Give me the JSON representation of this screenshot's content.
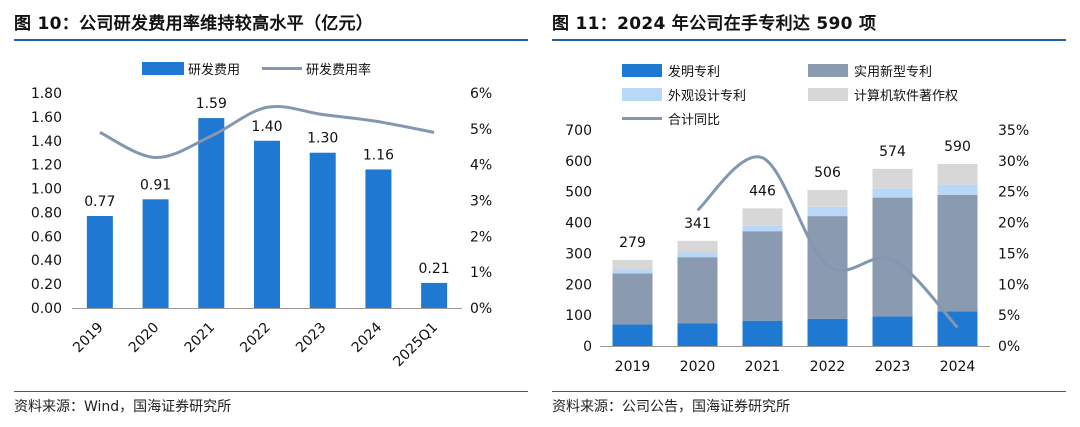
{
  "left": {
    "title": "图 10：公司研发费用率维持较高水平（亿元）",
    "source": "资料来源：Wind，国海证券研究所"
  },
  "right": {
    "title": "图 11：2024 年公司在手专利达 590 项",
    "source": "资料来源：公司公告，国海证券研究所"
  },
  "chart_data": [
    {
      "type": "bar",
      "title": "图 10：公司研发费用率维持较高水平（亿元）",
      "categories": [
        "2019",
        "2020",
        "2021",
        "2022",
        "2023",
        "2024",
        "2025Q1"
      ],
      "series": [
        {
          "name": "研发费用",
          "type": "bar",
          "axis": "left",
          "values": [
            0.77,
            0.91,
            1.59,
            1.4,
            1.3,
            1.16,
            0.21
          ]
        },
        {
          "name": "研发费用率",
          "type": "line",
          "axis": "right",
          "values": [
            4.9,
            4.2,
            4.8,
            5.6,
            5.4,
            5.2,
            4.9
          ]
        }
      ],
      "data_labels": [
        "0.77",
        "0.91",
        "1.59",
        "1.40",
        "1.30",
        "1.16",
        "0.21"
      ],
      "y_left": {
        "min": 0,
        "max": 1.8,
        "step": 0.2,
        "ticks": [
          "0.00",
          "0.20",
          "0.40",
          "0.60",
          "0.80",
          "1.00",
          "1.20",
          "1.40",
          "1.60",
          "1.80"
        ]
      },
      "y_right": {
        "min": 0,
        "max": 6,
        "step": 1,
        "ticks": [
          "0%",
          "1%",
          "2%",
          "3%",
          "4%",
          "5%",
          "6%"
        ]
      },
      "legend_position": "top",
      "grid": false,
      "colors": {
        "bar": "#1f78d1",
        "line": "#8397b0"
      }
    },
    {
      "type": "bar",
      "stacked": true,
      "title": "图 11：2024 年公司在手专利达 590 项",
      "categories": [
        "2019",
        "2020",
        "2021",
        "2022",
        "2023",
        "2024"
      ],
      "series": [
        {
          "name": "发明专利",
          "type": "bar",
          "axis": "left",
          "values": [
            70,
            73,
            82,
            88,
            96,
            112
          ]
        },
        {
          "name": "实用新型专利",
          "type": "bar",
          "axis": "left",
          "values": [
            165,
            215,
            290,
            333,
            385,
            378
          ]
        },
        {
          "name": "外观设计专利",
          "type": "bar",
          "axis": "left",
          "values": [
            13,
            15,
            18,
            30,
            30,
            33
          ]
        },
        {
          "name": "计算机软件著作权",
          "type": "bar",
          "axis": "left",
          "values": [
            31,
            38,
            56,
            55,
            63,
            67
          ]
        },
        {
          "name": "合计同比",
          "type": "line",
          "axis": "right",
          "values": [
            null,
            22,
            30.5,
            13,
            14,
            3
          ]
        }
      ],
      "totals": [
        "279",
        "341",
        "446",
        "506",
        "574",
        "590"
      ],
      "y_left": {
        "min": 0,
        "max": 700,
        "step": 100,
        "ticks": [
          "0",
          "100",
          "200",
          "300",
          "400",
          "500",
          "600",
          "700"
        ]
      },
      "y_right": {
        "min": 0,
        "max": 35,
        "step": 5,
        "ticks": [
          "0%",
          "5%",
          "10%",
          "15%",
          "20%",
          "25%",
          "30%",
          "35%"
        ]
      },
      "legend_position": "top",
      "grid": false,
      "colors": {
        "发明专利": "#1f78d1",
        "实用新型专利": "#8a9ab0",
        "外观设计专利": "#b9d7f6",
        "计算机软件著作权": "#d7d7d7",
        "合计同比": "#8397b0"
      }
    }
  ]
}
